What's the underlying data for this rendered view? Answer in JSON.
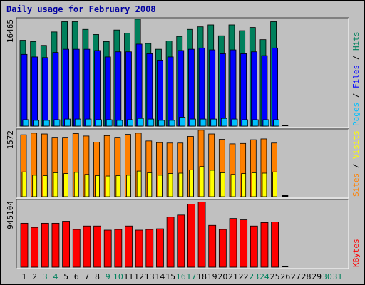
{
  "title": "Daily usage for February 2008",
  "chart_data": [
    {
      "type": "bar",
      "panel": "hits-files-pages",
      "max_label": "16465",
      "ymax": 16465,
      "side_label_parts": [
        {
          "text": "Pages",
          "color": "#00c0ff"
        },
        {
          "text": " / ",
          "color": "#000000"
        },
        {
          "text": "Files",
          "color": "#0000ff"
        },
        {
          "text": " / ",
          "color": "#000000"
        },
        {
          "text": "Hits",
          "color": "#00805c"
        }
      ],
      "series": [
        {
          "name": "Hits",
          "color": "#00805c",
          "values": [
            13400,
            13200,
            12600,
            14700,
            16300,
            16300,
            15100,
            14300,
            13200,
            15000,
            14500,
            16700,
            12900,
            12000,
            13300,
            14000,
            15100,
            15500,
            15800,
            14100,
            15800,
            14900,
            15400,
            13500,
            16300
          ]
        },
        {
          "name": "Files",
          "color": "#0000ff",
          "values": [
            11200,
            10800,
            10700,
            11500,
            12000,
            12000,
            12000,
            11800,
            10800,
            11600,
            11600,
            12800,
            11300,
            10300,
            10800,
            11800,
            12000,
            12200,
            11900,
            11300,
            11900,
            11300,
            11600,
            11000,
            12200
          ]
        },
        {
          "name": "Pages",
          "color": "#00c0ff",
          "values": [
            1000,
            900,
            900,
            1000,
            1100,
            1100,
            1100,
            1000,
            1000,
            900,
            1000,
            1200,
            1100,
            900,
            900,
            1400,
            1100,
            1100,
            1100,
            1200,
            1100,
            1000,
            1000,
            1000,
            1000
          ]
        }
      ]
    },
    {
      "type": "bar",
      "panel": "visits-sites",
      "max_label": "1572",
      "ymax": 1572,
      "side_label_parts": [
        {
          "text": "Sites",
          "color": "#ff8000"
        },
        {
          "text": " / ",
          "color": "#000000"
        },
        {
          "text": "Visits",
          "color": "#ffff00"
        }
      ],
      "series": [
        {
          "name": "Sites",
          "color": "#ff8000",
          "values": [
            1500,
            1540,
            1520,
            1440,
            1440,
            1530,
            1470,
            1320,
            1480,
            1440,
            1510,
            1540,
            1350,
            1310,
            1300,
            1300,
            1460,
            1610,
            1520,
            1390,
            1280,
            1290,
            1380,
            1400,
            1300
          ]
        },
        {
          "name": "Visits",
          "color": "#ffff00",
          "values": [
            600,
            520,
            510,
            580,
            560,
            590,
            540,
            510,
            500,
            510,
            520,
            620,
            580,
            520,
            560,
            570,
            650,
            730,
            640,
            580,
            540,
            560,
            580,
            570,
            600
          ]
        }
      ]
    },
    {
      "type": "bar",
      "panel": "kbytes",
      "max_label": "945104",
      "ymax": 945104,
      "side_label_parts": [
        {
          "text": "KBytes",
          "color": "#ff0000"
        }
      ],
      "series": [
        {
          "name": "KBytes",
          "color": "#ff0000",
          "values": [
            640000,
            580000,
            640000,
            640000,
            670000,
            550000,
            600000,
            600000,
            540000,
            550000,
            600000,
            540000,
            550000,
            560000,
            730000,
            760000,
            920000,
            950000,
            610000,
            550000,
            710000,
            690000,
            600000,
            650000,
            660000
          ]
        }
      ]
    }
  ],
  "x_axis": {
    "categories": [
      "1",
      "2",
      "3",
      "4",
      "5",
      "6",
      "7",
      "8",
      "9",
      "10",
      "11",
      "12",
      "13",
      "14",
      "15",
      "16",
      "17",
      "18",
      "19",
      "20",
      "21",
      "22",
      "23",
      "24",
      "25",
      "26",
      "27",
      "28",
      "29",
      "30",
      "31"
    ],
    "category_colors": [
      "#000000",
      "#000000",
      "#00805c",
      "#00805c",
      "#000000",
      "#000000",
      "#000000",
      "#000000",
      "#00805c",
      "#00805c",
      "#000000",
      "#000000",
      "#000000",
      "#000000",
      "#000000",
      "#00805c",
      "#00805c",
      "#000000",
      "#000000",
      "#000000",
      "#000000",
      "#000000",
      "#00805c",
      "#00805c",
      "#000000",
      "#000000",
      "#000000",
      "#000000",
      "#000000",
      "#00805c",
      "#00805c"
    ]
  }
}
